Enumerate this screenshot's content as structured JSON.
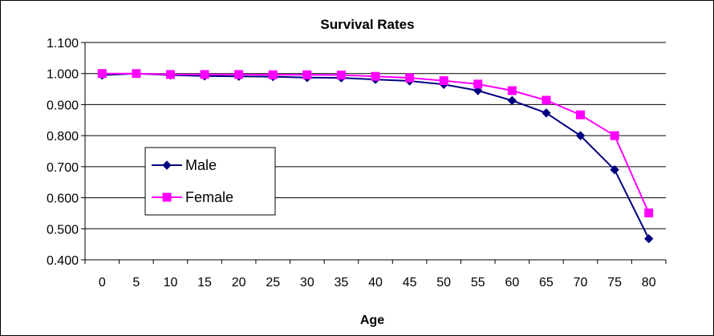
{
  "chart_data": {
    "type": "line",
    "title": "Survival Rates",
    "xlabel": "Age",
    "ylabel": "",
    "categories": [
      "0",
      "5",
      "10",
      "15",
      "20",
      "25",
      "30",
      "35",
      "40",
      "45",
      "50",
      "55",
      "60",
      "65",
      "70",
      "75",
      "80"
    ],
    "y_ticks": [
      "0.400",
      "0.500",
      "0.600",
      "0.700",
      "0.800",
      "0.900",
      "1.000",
      "1.100"
    ],
    "ylim": [
      0.4,
      1.1
    ],
    "grid": true,
    "legend_position": "left",
    "series": [
      {
        "name": "Male",
        "color": "#000080",
        "marker": "diamond",
        "values": [
          0.995,
          1.0,
          0.995,
          0.992,
          0.991,
          0.99,
          0.987,
          0.986,
          0.981,
          0.976,
          0.965,
          0.945,
          0.913,
          0.873,
          0.8,
          0.69,
          0.468
        ]
      },
      {
        "name": "Female",
        "color": "#FF00FF",
        "marker": "square",
        "values": [
          1.0,
          1.0,
          0.997,
          0.997,
          0.997,
          0.996,
          0.996,
          0.995,
          0.991,
          0.986,
          0.977,
          0.966,
          0.945,
          0.914,
          0.867,
          0.8,
          0.551
        ]
      }
    ]
  }
}
